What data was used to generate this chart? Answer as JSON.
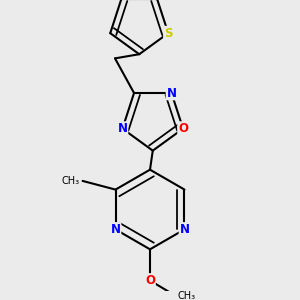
{
  "bg_color": "#ebebeb",
  "bond_color": "#000000",
  "bond_width": 1.5,
  "atom_colors": {
    "N": "#0000ff",
    "O": "#ff0000",
    "S": "#cccc00",
    "C": "#000000"
  },
  "font_size": 8.5,
  "fig_bg": "#ebebeb"
}
